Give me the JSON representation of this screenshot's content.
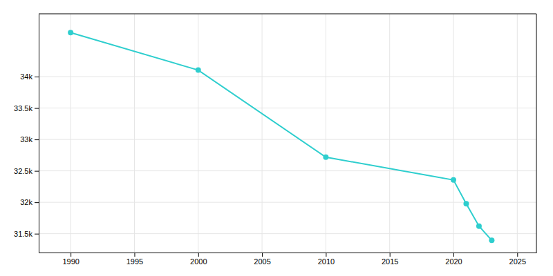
{
  "chart_data": {
    "type": "line",
    "x": [
      1990,
      2000,
      2010,
      2020,
      2021,
      2022,
      2023
    ],
    "values": [
      34700,
      34104,
      32718,
      32355,
      31978,
      31620,
      31394
    ],
    "color": "#2ecece",
    "marker": "circle",
    "xlim": [
      1987.5,
      2026.5
    ],
    "ylim": [
      31200,
      35000
    ],
    "xticks": [
      1990,
      1995,
      2000,
      2005,
      2010,
      2015,
      2020,
      2025
    ],
    "yticks": [
      {
        "value": 31500,
        "label": "31.5k"
      },
      {
        "value": 32000,
        "label": "32k"
      },
      {
        "value": 32500,
        "label": "32.5k"
      },
      {
        "value": 33000,
        "label": "33k"
      },
      {
        "value": 33500,
        "label": "33.5k"
      },
      {
        "value": 34000,
        "label": "34k"
      }
    ],
    "grid": true
  }
}
